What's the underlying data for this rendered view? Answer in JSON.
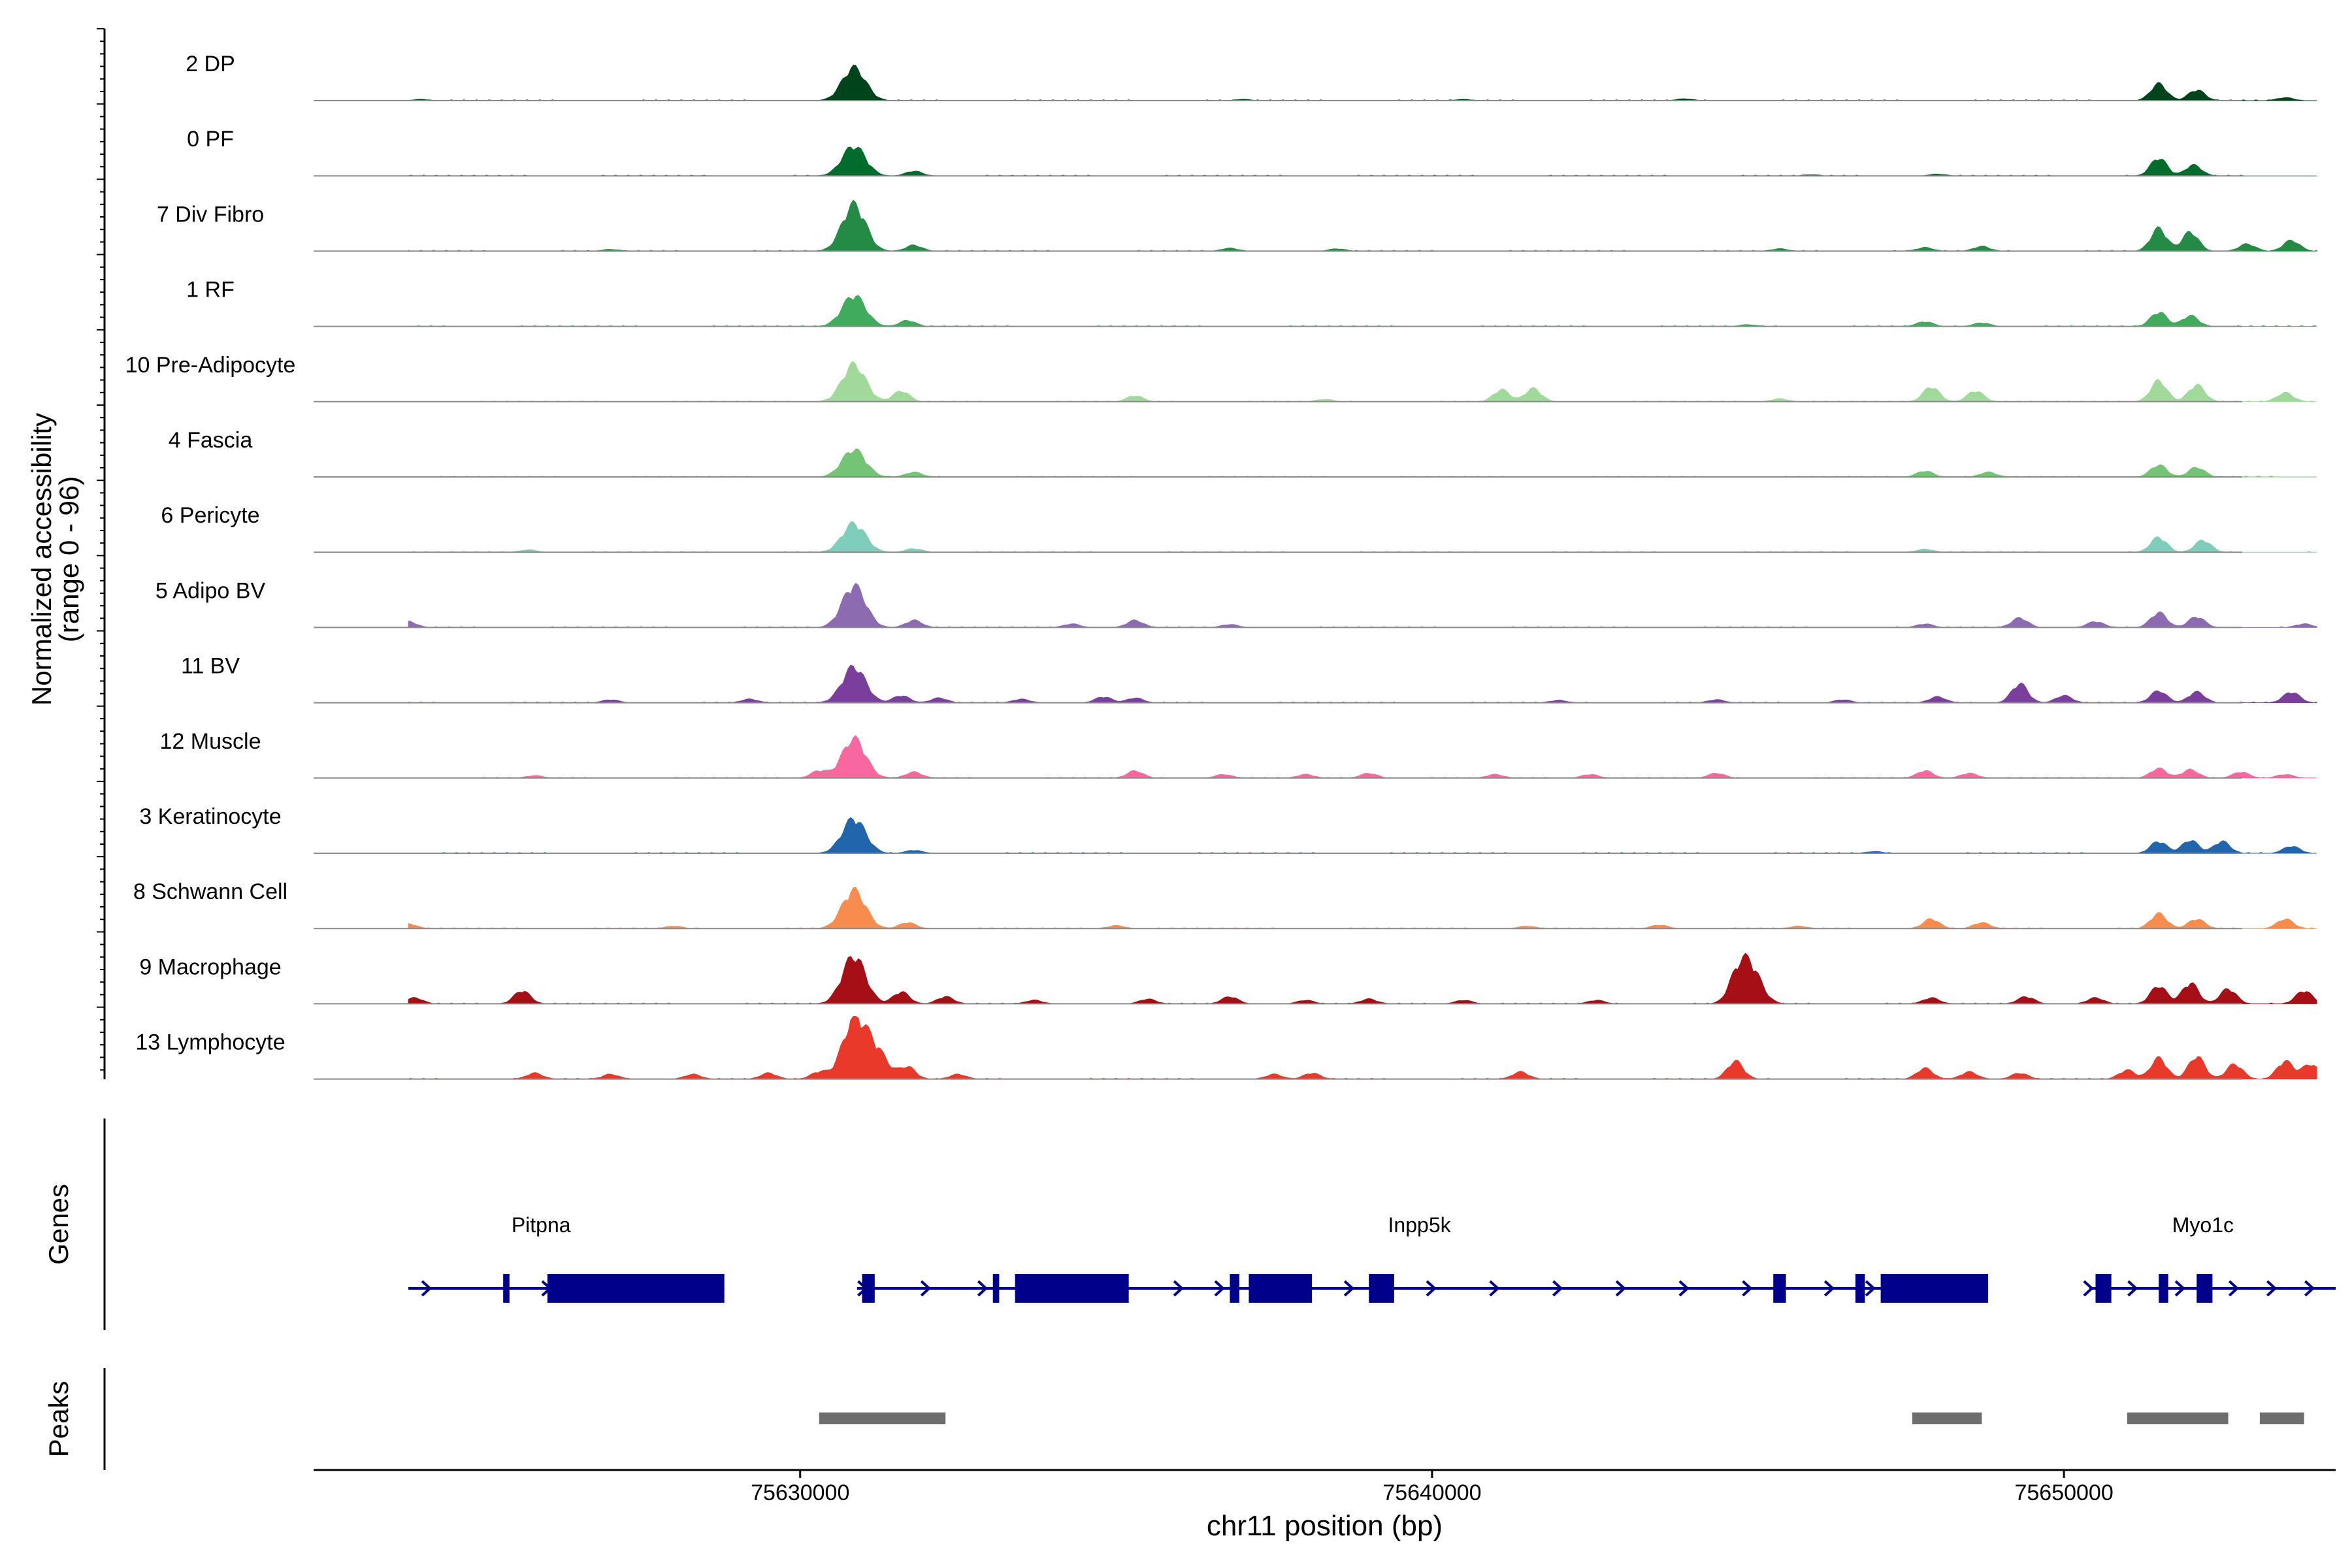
{
  "chart_data": {
    "type": "area",
    "title": "",
    "ylabel": "Normalized accessibility",
    "ylabel_range": "(range 0 - 96)",
    "ylim": [
      0,
      96
    ],
    "xlabel": "chr11 position (bp)",
    "xlim": [
      75622300,
      75654300
    ],
    "x_ticks": [
      75630000,
      75640000,
      75650000
    ],
    "x_tick_labels": [
      "75630000",
      "75640000",
      "75650000"
    ],
    "genes_label": "Genes",
    "peaks_label": "Peaks",
    "tracks": [
      {
        "label": "2 DP",
        "color": "#00441b",
        "peaks": [
          [
            75630850,
            55
          ],
          [
            75651500,
            28
          ],
          [
            75652100,
            18
          ],
          [
            75653500,
            5
          ],
          [
            75624000,
            2
          ],
          [
            75637000,
            2
          ],
          [
            75640500,
            2
          ],
          [
            75644000,
            3
          ]
        ]
      },
      {
        "label": "0 PF",
        "color": "#006d2c",
        "peaks": [
          [
            75630850,
            50
          ],
          [
            75631800,
            8
          ],
          [
            75651500,
            30
          ],
          [
            75652050,
            18
          ],
          [
            75646000,
            2
          ],
          [
            75648000,
            3
          ]
        ]
      },
      {
        "label": "7 Div Fibro",
        "color": "#238b45",
        "peaks": [
          [
            75630850,
            78
          ],
          [
            75631800,
            10
          ],
          [
            75651500,
            38
          ],
          [
            75652000,
            32
          ],
          [
            75652900,
            12
          ],
          [
            75653600,
            18
          ],
          [
            75636800,
            5
          ],
          [
            75647800,
            6
          ],
          [
            75648700,
            8
          ],
          [
            75645500,
            4
          ],
          [
            75627000,
            3
          ],
          [
            75638500,
            4
          ]
        ]
      },
      {
        "label": "1 RF",
        "color": "#41ab5d",
        "peaks": [
          [
            75630850,
            52
          ],
          [
            75631700,
            10
          ],
          [
            75651500,
            24
          ],
          [
            75652000,
            18
          ],
          [
            75647800,
            8
          ],
          [
            75648700,
            6
          ],
          [
            75645000,
            3
          ]
        ]
      },
      {
        "label": "10 Pre-Adipocyte",
        "color": "#a1d99b",
        "peaks": [
          [
            75630850,
            62
          ],
          [
            75631600,
            18
          ],
          [
            75635300,
            10
          ],
          [
            75641100,
            20
          ],
          [
            75641600,
            22
          ],
          [
            75647900,
            25
          ],
          [
            75648600,
            18
          ],
          [
            75651500,
            35
          ],
          [
            75652100,
            28
          ],
          [
            75653500,
            15
          ],
          [
            75638300,
            4
          ],
          [
            75645500,
            5
          ]
        ]
      },
      {
        "label": "4 Fascia",
        "color": "#74c476",
        "peaks": [
          [
            75630850,
            46
          ],
          [
            75631800,
            8
          ],
          [
            75647800,
            10
          ],
          [
            75648800,
            8
          ],
          [
            75651500,
            20
          ],
          [
            75652100,
            16
          ]
        ]
      },
      {
        "label": "6 Pericyte",
        "color": "#7fcdbb",
        "peaks": [
          [
            75630850,
            48
          ],
          [
            75631800,
            6
          ],
          [
            75651500,
            25
          ],
          [
            75652200,
            20
          ],
          [
            75625700,
            4
          ],
          [
            75647800,
            5
          ]
        ]
      },
      {
        "label": "5 Adipo BV",
        "color": "#8c6bb1",
        "peaks": [
          [
            75630850,
            70
          ],
          [
            75631800,
            12
          ],
          [
            75635300,
            12
          ],
          [
            75634300,
            6
          ],
          [
            75636800,
            5
          ],
          [
            75623800,
            10
          ],
          [
            75649300,
            16
          ],
          [
            75650500,
            10
          ],
          [
            75651500,
            25
          ],
          [
            75652100,
            18
          ],
          [
            75653800,
            6
          ],
          [
            75647800,
            6
          ]
        ]
      },
      {
        "label": "11 BV",
        "color": "#7a3e9d",
        "peaks": [
          [
            75630850,
            60
          ],
          [
            75631600,
            12
          ],
          [
            75632200,
            8
          ],
          [
            75633500,
            6
          ],
          [
            75634800,
            10
          ],
          [
            75635300,
            8
          ],
          [
            75649300,
            32
          ],
          [
            75650000,
            12
          ],
          [
            75651500,
            20
          ],
          [
            75652100,
            18
          ],
          [
            75653600,
            18
          ],
          [
            75648000,
            10
          ],
          [
            75627000,
            5
          ],
          [
            75629200,
            6
          ],
          [
            75642000,
            4
          ],
          [
            75644500,
            5
          ],
          [
            75646500,
            5
          ]
        ]
      },
      {
        "label": "12 Muscle",
        "color": "#f768a1",
        "peaks": [
          [
            75630850,
            66
          ],
          [
            75630300,
            12
          ],
          [
            75631800,
            10
          ],
          [
            75635300,
            12
          ],
          [
            75636700,
            6
          ],
          [
            75638000,
            6
          ],
          [
            75639000,
            8
          ],
          [
            75641000,
            6
          ],
          [
            75642500,
            6
          ],
          [
            75644500,
            8
          ],
          [
            75647800,
            12
          ],
          [
            75648500,
            8
          ],
          [
            75651500,
            16
          ],
          [
            75652000,
            14
          ],
          [
            75652800,
            10
          ],
          [
            75653500,
            6
          ],
          [
            75625800,
            4
          ]
        ]
      },
      {
        "label": "3 Keratinocyte",
        "color": "#2166ac",
        "peaks": [
          [
            75630850,
            58
          ],
          [
            75631800,
            5
          ],
          [
            75651500,
            20
          ],
          [
            75652000,
            22
          ],
          [
            75652500,
            20
          ],
          [
            75653600,
            12
          ],
          [
            75647000,
            3
          ]
        ]
      },
      {
        "label": "8 Schwann Cell",
        "color": "#f78c4e",
        "peaks": [
          [
            75630850,
            64
          ],
          [
            75631700,
            10
          ],
          [
            75623800,
            8
          ],
          [
            75628000,
            4
          ],
          [
            75635000,
            5
          ],
          [
            75641500,
            4
          ],
          [
            75643600,
            6
          ],
          [
            75645800,
            4
          ],
          [
            75647900,
            16
          ],
          [
            75648700,
            10
          ],
          [
            75651500,
            25
          ],
          [
            75652100,
            16
          ],
          [
            75653500,
            16
          ]
        ]
      },
      {
        "label": "9 Macrophage",
        "color": "#a50f15",
        "peaks": [
          [
            75630850,
            80
          ],
          [
            75631600,
            20
          ],
          [
            75632300,
            12
          ],
          [
            75625600,
            22
          ],
          [
            75623900,
            10
          ],
          [
            75636800,
            12
          ],
          [
            75635500,
            8
          ],
          [
            75638000,
            6
          ],
          [
            75639000,
            8
          ],
          [
            75640500,
            6
          ],
          [
            75644800,
            20
          ],
          [
            75645000,
            70
          ],
          [
            75647900,
            10
          ],
          [
            75649400,
            12
          ],
          [
            75650500,
            10
          ],
          [
            75651500,
            30
          ],
          [
            75652000,
            35
          ],
          [
            75652600,
            25
          ],
          [
            75653800,
            22
          ],
          [
            75633700,
            6
          ],
          [
            75642600,
            6
          ]
        ]
      },
      {
        "label": "13 Lymphocyte",
        "color": "#e8392a",
        "peaks": [
          [
            75630850,
            96
          ],
          [
            75631200,
            45
          ],
          [
            75631700,
            20
          ],
          [
            75630300,
            12
          ],
          [
            75625800,
            10
          ],
          [
            75627000,
            8
          ],
          [
            75628300,
            8
          ],
          [
            75629500,
            10
          ],
          [
            75632500,
            8
          ],
          [
            75637500,
            8
          ],
          [
            75638100,
            10
          ],
          [
            75641400,
            12
          ],
          [
            75644800,
            30
          ],
          [
            75647800,
            18
          ],
          [
            75648500,
            12
          ],
          [
            75649300,
            10
          ],
          [
            75651000,
            15
          ],
          [
            75651500,
            35
          ],
          [
            75652100,
            38
          ],
          [
            75652700,
            25
          ],
          [
            75653500,
            30
          ],
          [
            75653900,
            25
          ]
        ]
      }
    ],
    "genes": [
      {
        "name": "Pitpna",
        "start": 75623800,
        "end": 75628800,
        "label_pos": 75625900,
        "exons": [
          [
            75625300,
            75625400
          ],
          [
            75626000,
            75628800
          ]
        ],
        "arrows": [
          75624100,
          75626000
        ]
      },
      {
        "name": "Inpp5k",
        "start": 75630900,
        "end": 75648800,
        "label_pos": 75639800,
        "exons": [
          [
            75630980,
            75631180
          ],
          [
            75633050,
            75633150
          ],
          [
            75633400,
            75635200
          ],
          [
            75636800,
            75636950
          ],
          [
            75637100,
            75638100
          ],
          [
            75639000,
            75639400
          ],
          [
            75645400,
            75645600
          ],
          [
            75646700,
            75646850
          ],
          [
            75647100,
            75648800
          ]
        ],
        "arrows": [
          75631000,
          75632000,
          75632900,
          75636000,
          75636650,
          75638700,
          75640000,
          75641000,
          75642000,
          75643000,
          75644000,
          75645000,
          75646300,
          75646950
        ]
      },
      {
        "name": "Myo1c",
        "start": 75650400,
        "end": 75654300,
        "label_pos": 75652200,
        "exons": [
          [
            75650500,
            75650750
          ],
          [
            75651500,
            75651650
          ],
          [
            75652100,
            75652350
          ]
        ],
        "arrows": [
          75650400,
          75651100,
          75651850,
          75652700,
          75653300,
          75653900
        ]
      }
    ],
    "peak_regions": [
      [
        75630300,
        75632300
      ],
      [
        75647600,
        75648700
      ],
      [
        75651000,
        75652600
      ],
      [
        75653100,
        75653800
      ]
    ],
    "peak_color": "#6e6e6e",
    "gene_color": "#00008b"
  }
}
